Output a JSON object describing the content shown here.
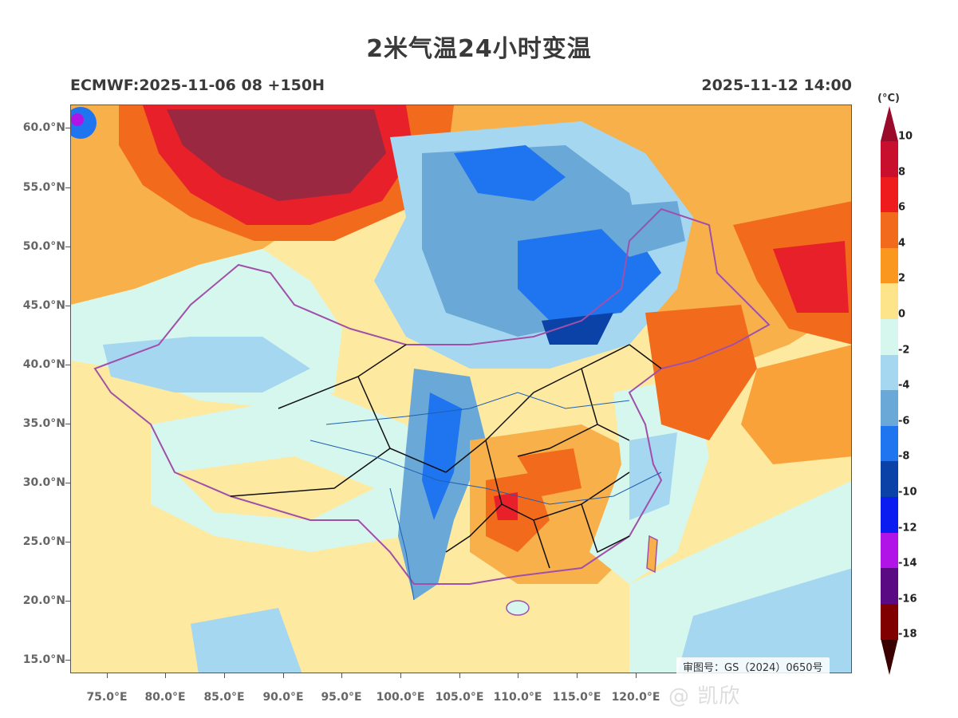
{
  "title": "2米气温24小时变温",
  "subtitle_left": "ECMWF:2025-11-06 08 +150H",
  "subtitle_right": "2025-11-12 14:00",
  "map_approval": "审图号：GS（2024）0650号",
  "watermark": "@ 凯欣",
  "y_axis_labels": [
    "60.0°N",
    "55.0°N",
    "50.0°N",
    "45.0°N",
    "40.0°N",
    "35.0°N",
    "30.0°N",
    "25.0°N",
    "20.0°N",
    "15.0°N"
  ],
  "x_axis_labels": [
    "75.0°E",
    "80.0°E",
    "85.0°E",
    "90.0°E",
    "95.0°E",
    "100.0°E",
    "105.0°E",
    "110.0°E",
    "115.0°E",
    "120.0°E"
  ],
  "colorbar": {
    "unit": "(°C)",
    "labels": [
      "10",
      "8",
      "6",
      "4",
      "2",
      "0",
      "-2",
      "-4",
      "-6",
      "-8",
      "-10",
      "-12",
      "-14",
      "-16",
      "-18"
    ],
    "colors": [
      "#c8102e",
      "#ee1c1c",
      "#f26b1d",
      "#f9971e",
      "#fde48a",
      "#d6f7ee",
      "#a6d7f0",
      "#6aa8d8",
      "#1f75f0",
      "#0a42a8",
      "#0a1cf0",
      "#b014e6",
      "#5a0a82",
      "#800000"
    ],
    "top_color": "#9a0a2a",
    "bottom_color": "#3a0000"
  },
  "map_colors": {
    "hot": "#9a2840",
    "red": "#e8202a",
    "orange": "#f26b1d",
    "light_orange": "#f9a23a",
    "yellow": "#fde9a0",
    "mint": "#d6f7ee",
    "light_blue": "#a6d7f0",
    "blue": "#6aa8d8",
    "deep_blue": "#1f75f0",
    "navy": "#0a42a8",
    "border_purple": "#a050a8",
    "river": "#1f5fb0"
  }
}
